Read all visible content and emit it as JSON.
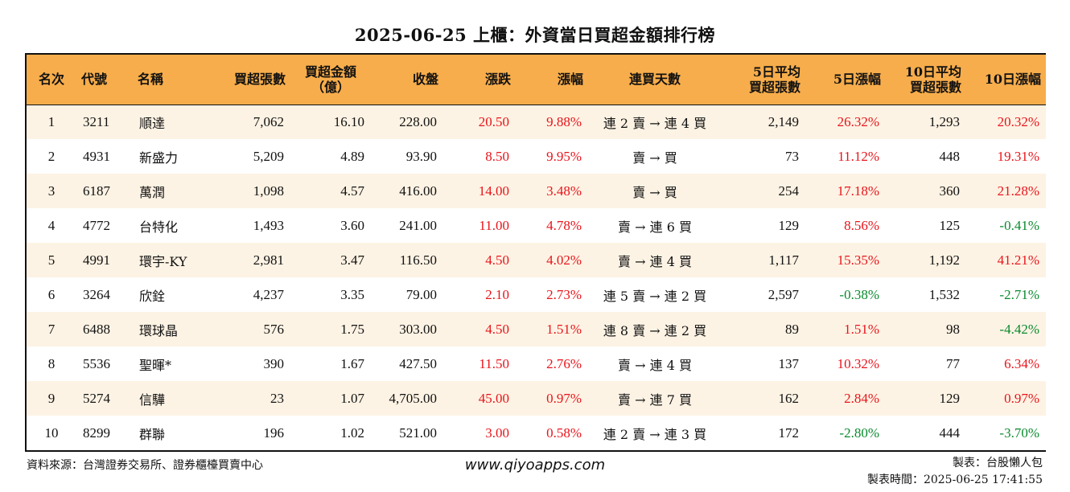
{
  "title": "2025-06-25 上櫃：外資當日買超金額排行榜",
  "headers": {
    "rank": "名次",
    "code": "代號",
    "name": "名稱",
    "net_buy_lots": "買超張數",
    "net_buy_amount_line1": "買超金額",
    "net_buy_amount_line2": "（億）",
    "close": "收盤",
    "change": "漲跌",
    "change_pct": "漲幅",
    "streak": "連買天數",
    "avg5_line1": "5日平均",
    "avg5_line2": "買超張數",
    "chg5": "5日漲幅",
    "avg10_line1": "10日平均",
    "avg10_line2": "買超張數",
    "chg10": "10日漲幅"
  },
  "rows": [
    {
      "rank": "1",
      "code": "3211",
      "name": "順達",
      "lots": "7,062",
      "amount": "16.10",
      "close": "228.00",
      "change": "20.50",
      "pct": "9.88%",
      "streak": "連 2 賣 → 連 4 買",
      "avg5": "2,149",
      "chg5": "26.32%",
      "chg5_color": "red",
      "avg10": "1,293",
      "chg10": "20.32%",
      "chg10_color": "red"
    },
    {
      "rank": "2",
      "code": "4931",
      "name": "新盛力",
      "lots": "5,209",
      "amount": "4.89",
      "close": "93.90",
      "change": "8.50",
      "pct": "9.95%",
      "streak": "賣 → 買",
      "avg5": "73",
      "chg5": "11.12%",
      "chg5_color": "red",
      "avg10": "448",
      "chg10": "19.31%",
      "chg10_color": "red"
    },
    {
      "rank": "3",
      "code": "6187",
      "name": "萬潤",
      "lots": "1,098",
      "amount": "4.57",
      "close": "416.00",
      "change": "14.00",
      "pct": "3.48%",
      "streak": "賣 → 買",
      "avg5": "254",
      "chg5": "17.18%",
      "chg5_color": "red",
      "avg10": "360",
      "chg10": "21.28%",
      "chg10_color": "red"
    },
    {
      "rank": "4",
      "code": "4772",
      "name": "台特化",
      "lots": "1,493",
      "amount": "3.60",
      "close": "241.00",
      "change": "11.00",
      "pct": "4.78%",
      "streak": "賣 → 連 6 買",
      "avg5": "129",
      "chg5": "8.56%",
      "chg5_color": "red",
      "avg10": "125",
      "chg10": "-0.41%",
      "chg10_color": "green"
    },
    {
      "rank": "5",
      "code": "4991",
      "name": "環宇-KY",
      "lots": "2,981",
      "amount": "3.47",
      "close": "116.50",
      "change": "4.50",
      "pct": "4.02%",
      "streak": "賣 → 連 4 買",
      "avg5": "1,117",
      "chg5": "15.35%",
      "chg5_color": "red",
      "avg10": "1,192",
      "chg10": "41.21%",
      "chg10_color": "red"
    },
    {
      "rank": "6",
      "code": "3264",
      "name": "欣銓",
      "lots": "4,237",
      "amount": "3.35",
      "close": "79.00",
      "change": "2.10",
      "pct": "2.73%",
      "streak": "連 5 賣 → 連 2 買",
      "avg5": "2,597",
      "chg5": "-0.38%",
      "chg5_color": "green",
      "avg10": "1,532",
      "chg10": "-2.71%",
      "chg10_color": "green"
    },
    {
      "rank": "7",
      "code": "6488",
      "name": "環球晶",
      "lots": "576",
      "amount": "1.75",
      "close": "303.00",
      "change": "4.50",
      "pct": "1.51%",
      "streak": "連 8 賣 → 連 2 買",
      "avg5": "89",
      "chg5": "1.51%",
      "chg5_color": "red",
      "avg10": "98",
      "chg10": "-4.42%",
      "chg10_color": "green"
    },
    {
      "rank": "8",
      "code": "5536",
      "name": "聖暉*",
      "lots": "390",
      "amount": "1.67",
      "close": "427.50",
      "change": "11.50",
      "pct": "2.76%",
      "streak": "賣 → 連 4 買",
      "avg5": "137",
      "chg5": "10.32%",
      "chg5_color": "red",
      "avg10": "77",
      "chg10": "6.34%",
      "chg10_color": "red"
    },
    {
      "rank": "9",
      "code": "5274",
      "name": "信驊",
      "lots": "23",
      "amount": "1.07",
      "close": "4,705.00",
      "change": "45.00",
      "pct": "0.97%",
      "streak": "賣 → 連 7 買",
      "avg5": "162",
      "chg5": "2.84%",
      "chg5_color": "red",
      "avg10": "129",
      "chg10": "0.97%",
      "chg10_color": "red"
    },
    {
      "rank": "10",
      "code": "8299",
      "name": "群聯",
      "lots": "196",
      "amount": "1.02",
      "close": "521.00",
      "change": "3.00",
      "pct": "0.58%",
      "streak": "連 2 賣 → 連 3 買",
      "avg5": "172",
      "chg5": "-2.80%",
      "chg5_color": "green",
      "avg10": "444",
      "chg10": "-3.70%",
      "chg10_color": "green"
    }
  ],
  "colors": {
    "header_bg": "#f7ad4b",
    "stripe_bg": "#fdf3e4",
    "up": "#e8141b",
    "down": "#0a8a2e"
  },
  "footer": {
    "source": "資料來源：台灣證券交易所、證券櫃檯買賣中心",
    "website": "www.qiyoapps.com",
    "author": "製表：台股懶人包",
    "made_time": "製表時間：2025-06-25 17:41:55"
  }
}
